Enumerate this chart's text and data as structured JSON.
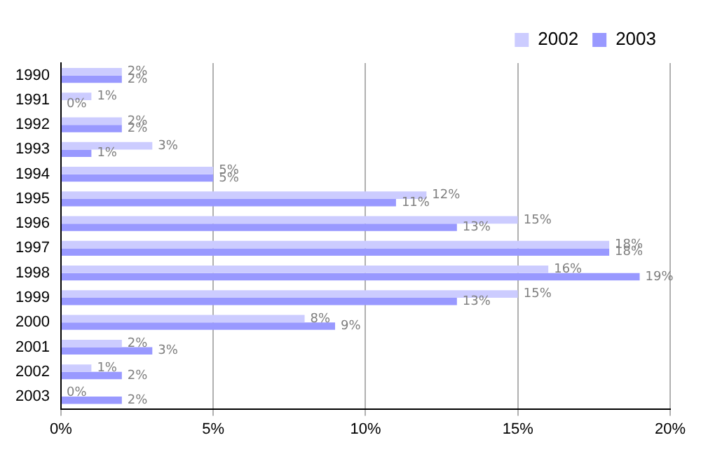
{
  "chart_data": {
    "type": "bar",
    "orientation": "horizontal",
    "categories": [
      "1990",
      "1991",
      "1992",
      "1993",
      "1994",
      "1995",
      "1996",
      "1997",
      "1998",
      "1999",
      "2000",
      "2001",
      "2002",
      "2003"
    ],
    "series": [
      {
        "name": "2002",
        "color": "#ccccff",
        "values": [
          2,
          1,
          2,
          3,
          5,
          12,
          15,
          18,
          16,
          15,
          8,
          2,
          1,
          0
        ],
        "value_labels": [
          "2%",
          "1%",
          "2%",
          "3%",
          "5%",
          "12%",
          "15%",
          "18%",
          "16%",
          "15%",
          "8%",
          "2%",
          "1%",
          "0%"
        ]
      },
      {
        "name": "2003",
        "color": "#9999ff",
        "values": [
          2,
          0,
          2,
          1,
          5,
          11,
          13,
          18,
          19,
          13,
          9,
          3,
          2,
          2
        ],
        "value_labels": [
          "2%",
          "0%",
          "2%",
          "1%",
          "5%",
          "11%",
          "13%",
          "18%",
          "19%",
          "13%",
          "9%",
          "3%",
          "2%",
          "2%"
        ]
      }
    ],
    "xlim": [
      0,
      20
    ],
    "xticks": [
      {
        "value": 0,
        "label": "0%"
      },
      {
        "value": 5,
        "label": "5%"
      },
      {
        "value": 10,
        "label": "10%"
      },
      {
        "value": 15,
        "label": "15%"
      },
      {
        "value": 20,
        "label": "20%"
      }
    ],
    "grid": "x",
    "legend": "top right"
  }
}
